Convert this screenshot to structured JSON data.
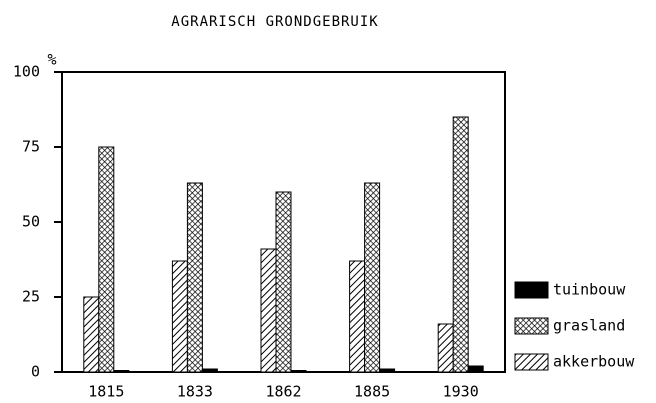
{
  "chart_data": {
    "type": "bar",
    "title": "AGRARISCH GRONDGEBRUIK",
    "y_label": "%",
    "categories": [
      "1815",
      "1833",
      "1862",
      "1885",
      "1930"
    ],
    "series": [
      {
        "name": "akkerbouw",
        "color": "#000000",
        "pattern": "hatch",
        "values": [
          25,
          37,
          41,
          37,
          16
        ]
      },
      {
        "name": "grasland",
        "color": "#000000",
        "pattern": "crosshatch",
        "values": [
          75,
          63,
          60,
          63,
          85
        ]
      },
      {
        "name": "tuinbouw",
        "color": "#000000",
        "pattern": "solid",
        "values": [
          0.5,
          1,
          0.5,
          1,
          2
        ]
      }
    ],
    "ylim": [
      0,
      100
    ],
    "yticks": [
      0,
      25,
      50,
      75,
      100
    ],
    "grid": false
  }
}
